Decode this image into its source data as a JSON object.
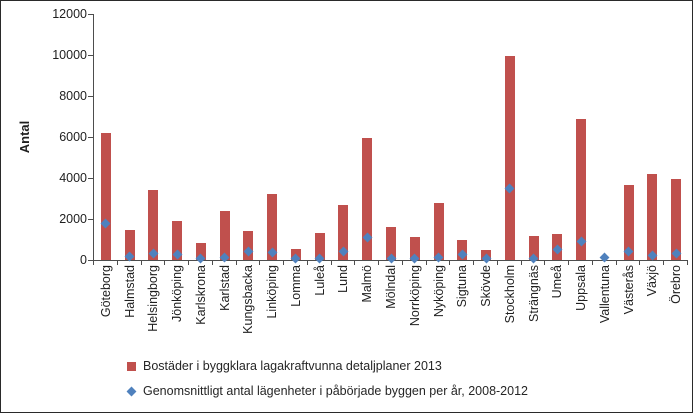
{
  "frame": {
    "background": "#ffffff",
    "border_color": "#2a2a2a",
    "axis_color": "#4d4d4d",
    "text_color": "#1f1f1f"
  },
  "chart_data": {
    "type": "bar",
    "title": "",
    "xlabel": "",
    "ylabel": "Antal",
    "ylim": [
      0,
      12000
    ],
    "yticks": [
      0,
      2000,
      4000,
      6000,
      8000,
      10000,
      12000
    ],
    "grid": false,
    "legend_position": "bottom-left",
    "categories": [
      "Göteborg",
      "Halmstad",
      "Helsingborg",
      "Jönköping",
      "Karlskrona",
      "Karlstad",
      "Kungsbacka",
      "Linköping",
      "Lomma",
      "Luleå",
      "Lund",
      "Malmö",
      "Mölndal",
      "Norrköping",
      "Nyköping",
      "Sigtuna",
      "Skövde",
      "Stockholm",
      "Strängnäs",
      "Umeå",
      "Uppsala",
      "Vallentuna",
      "Västerås",
      "Växjö",
      "Örebro"
    ],
    "series": [
      {
        "name": "Bostäder i byggklara lagakraftvunna detaljplaner 2013",
        "type": "bar",
        "marker": "square",
        "color": "#C0504D",
        "values": [
          6200,
          1450,
          3400,
          1900,
          850,
          2400,
          1400,
          3200,
          550,
          1300,
          2700,
          5950,
          1600,
          1100,
          2800,
          1000,
          500,
          9950,
          1150,
          1250,
          6900,
          0,
          3650,
          4200,
          3950
        ]
      },
      {
        "name": "Genomsnittligt antal lägenheter i påbörjade byggen per år, 2008-2012",
        "type": "scatter",
        "marker": "diamond",
        "color": "#4F81BD",
        "values": [
          1800,
          150,
          300,
          280,
          60,
          120,
          400,
          350,
          90,
          60,
          420,
          1120,
          80,
          90,
          130,
          250,
          60,
          3480,
          60,
          500,
          900,
          130,
          420,
          200,
          320
        ]
      }
    ]
  }
}
